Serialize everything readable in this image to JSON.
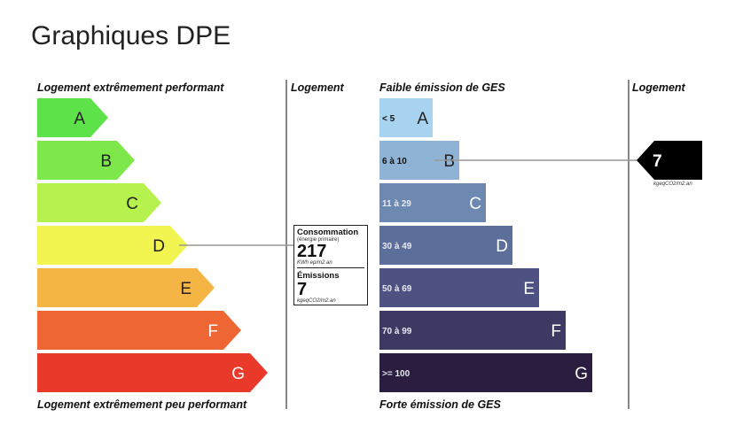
{
  "page": {
    "title": "Graphiques DPE"
  },
  "chart_data": [
    {
      "type": "bar",
      "name": "energy",
      "header_top": "Logement extrêmement performant",
      "header_bottom": "Logement extrêmement peu performant",
      "column_header": "Logement",
      "categories": [
        "A",
        "B",
        "C",
        "D",
        "E",
        "F",
        "G"
      ],
      "colors": [
        "#5ee24a",
        "#7ee84b",
        "#b6f24e",
        "#f2f54f",
        "#f5b545",
        "#ee6633",
        "#e9392a"
      ],
      "current_class": "D",
      "consumption": {
        "label": "Consommation",
        "sublabel": "(énergie primaire)",
        "value": 217,
        "unit": "KWh ep/m2.an"
      },
      "emissions": {
        "label": "Émissions",
        "value": 7,
        "unit": "kgeqCO2/m2.an"
      }
    },
    {
      "type": "bar",
      "name": "ges",
      "header_top": "Faible émission de GES",
      "header_bottom": "Forte émission de GES",
      "column_header": "Logement",
      "categories": [
        "A",
        "B",
        "C",
        "D",
        "E",
        "F",
        "G"
      ],
      "ranges": [
        "< 5",
        "6 à 10",
        "11 à 29",
        "30 à 49",
        "50 à 69",
        "70 à 99",
        ">= 100"
      ],
      "colors": [
        "#a8d3f0",
        "#8fb3d4",
        "#6d89b2",
        "#5c6f9b",
        "#4d5282",
        "#3c3a63",
        "#2a1d40"
      ],
      "current_class": "B",
      "value": 7,
      "unit": "kgeqCO2/m2.an"
    }
  ]
}
